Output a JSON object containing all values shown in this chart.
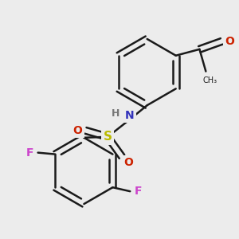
{
  "bg_color": "#ececec",
  "bond_color": "#1a1a1a",
  "bond_width": 1.8,
  "label_colors": {
    "N": "#3333bb",
    "H": "#777777",
    "S": "#bbbb00",
    "O": "#cc2200",
    "F": "#cc44cc",
    "C": "#1a1a1a"
  },
  "figsize": [
    3.0,
    3.0
  ],
  "dpi": 100,
  "scale": 0.55
}
